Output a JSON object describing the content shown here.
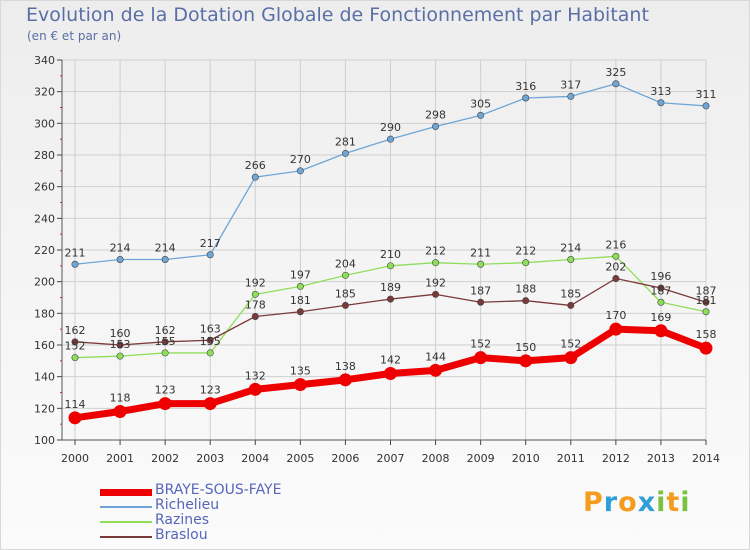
{
  "chart_data": {
    "type": "line",
    "title": "Evolution de la Dotation Globale de Fonctionnement par Habitant",
    "subtitle": "(en € et par an)",
    "xlabel": "",
    "ylabel": "",
    "x": [
      "2000",
      "2001",
      "2002",
      "2003",
      "2004",
      "2005",
      "2006",
      "2007",
      "2008",
      "2009",
      "2010",
      "2011",
      "2012",
      "2013",
      "2014"
    ],
    "ylim": [
      100,
      340
    ],
    "yticks": [
      100,
      120,
      140,
      160,
      180,
      200,
      220,
      240,
      260,
      280,
      300,
      320,
      340
    ],
    "grid": true,
    "legend_position": "bottom-left",
    "series": [
      {
        "name": "BRAYE-SOUS-FAYE",
        "color": "#ee0000",
        "values": [
          114,
          118,
          123,
          123,
          132,
          135,
          138,
          142,
          144,
          152,
          150,
          152,
          170,
          169,
          158
        ]
      },
      {
        "name": "Richelieu",
        "color": "#6fa6d6",
        "values": [
          211,
          214,
          214,
          217,
          266,
          270,
          281,
          290,
          298,
          305,
          316,
          317,
          325,
          313,
          311
        ]
      },
      {
        "name": "Razines",
        "color": "#8fde5a",
        "values": [
          152,
          153,
          155,
          155,
          192,
          197,
          204,
          210,
          212,
          211,
          212,
          214,
          216,
          187,
          181
        ]
      },
      {
        "name": "Braslou",
        "color": "#7a3a3a",
        "values": [
          162,
          160,
          162,
          163,
          178,
          181,
          185,
          189,
          192,
          187,
          188,
          185,
          202,
          196,
          187
        ]
      }
    ]
  },
  "logo": {
    "text": "Proxiti",
    "letters": [
      "P",
      "r",
      "o",
      "x",
      "i",
      "t",
      "i"
    ],
    "colors": [
      "#f39c1e",
      "#2e9fd8",
      "#f39c1e",
      "#2e9fd8",
      "#7cc242",
      "#f39c1e",
      "#7cc242"
    ]
  }
}
